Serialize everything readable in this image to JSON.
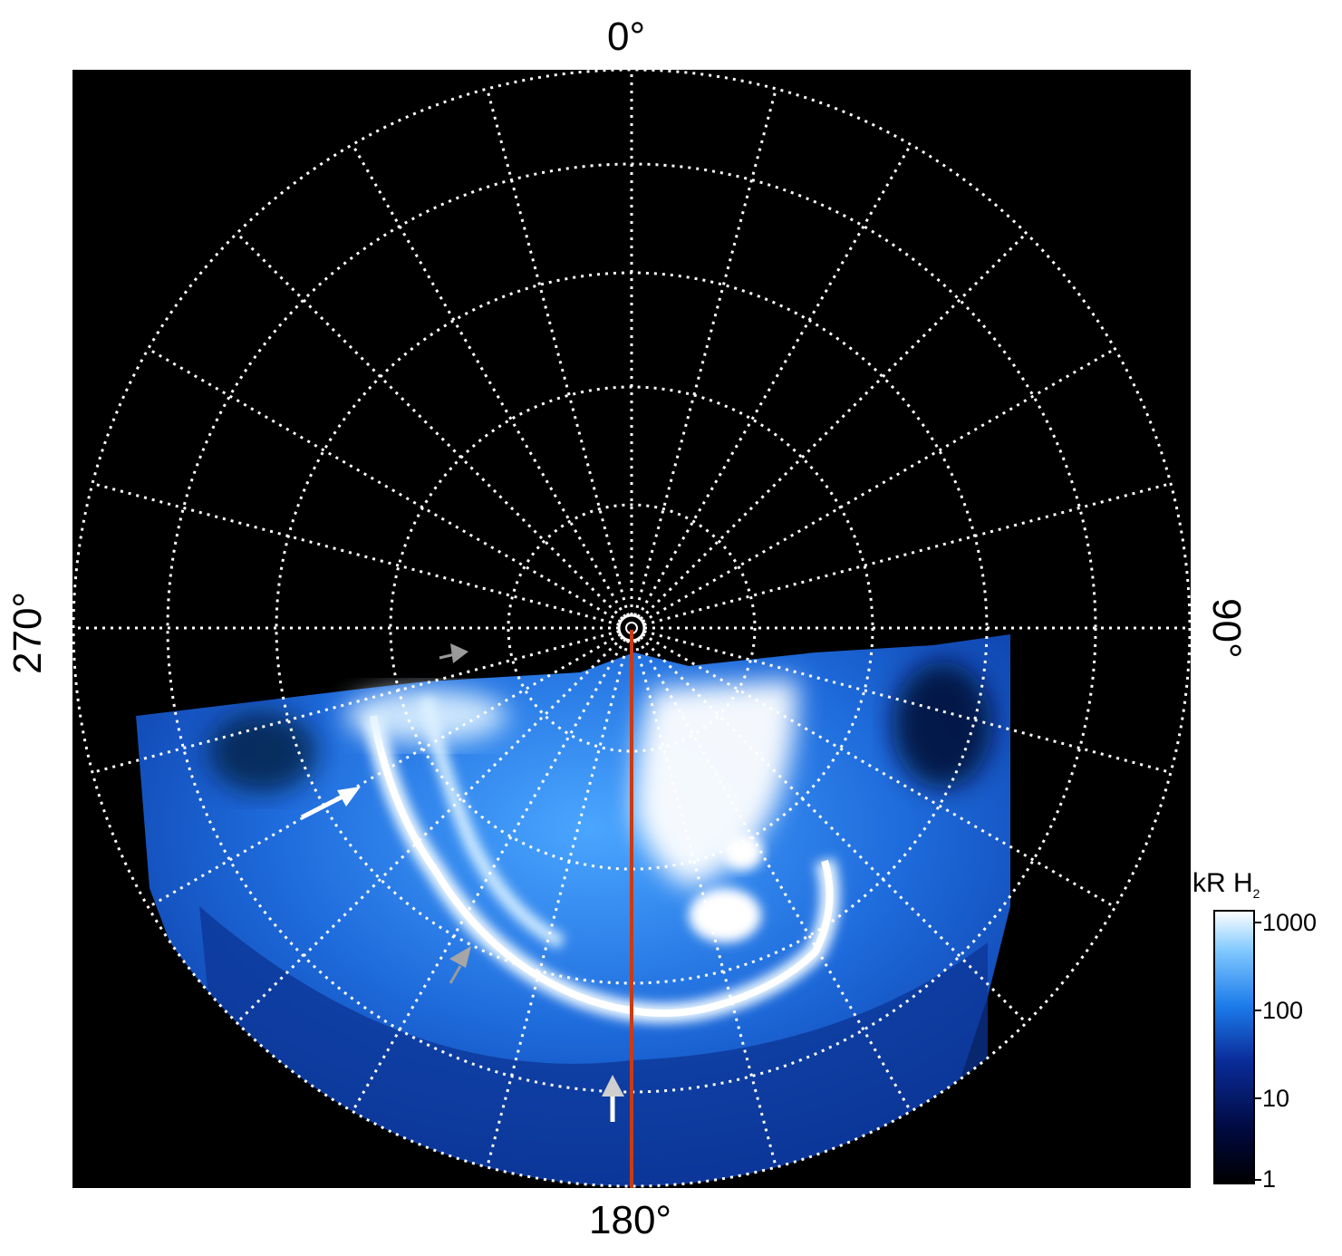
{
  "axis_labels": {
    "top": "0°",
    "right": "90°",
    "bottom": "180°",
    "left": "270°"
  },
  "colorbar": {
    "title": "kR H",
    "title_subscript": "2",
    "scale": "log",
    "ticks": [
      "1000",
      "100",
      "10",
      "1"
    ],
    "colors": [
      "#000000",
      "#000a40",
      "#0a2c9a",
      "#1b7bea",
      "#7ec7ff",
      "#ffffff"
    ]
  },
  "colors": {
    "background": "#000000",
    "grid": "#ffffff",
    "meridian_line": "#cc3a12",
    "arrow_white": "#ffffff",
    "arrow_gray": "#999999"
  },
  "arrows": [
    {
      "name": "white-arrow-left",
      "color": "white"
    },
    {
      "name": "white-arrow-bottom",
      "color": "white"
    },
    {
      "name": "gray-arrow-upper",
      "color": "gray"
    },
    {
      "name": "gray-arrow-lower",
      "color": "gray"
    }
  ]
}
